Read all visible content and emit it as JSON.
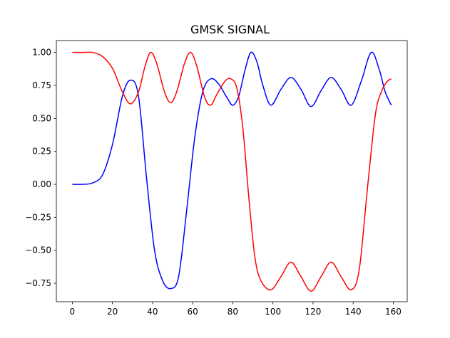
{
  "chart_data": {
    "type": "line",
    "title": "GMSK SIGNAL",
    "xlabel": "",
    "ylabel": "",
    "xlim": [
      -7.95,
      166.95
    ],
    "ylim": [
      -0.89,
      1.09
    ],
    "x_ticks": [
      0,
      20,
      40,
      60,
      80,
      100,
      120,
      140,
      160
    ],
    "y_ticks": [
      -0.75,
      -0.5,
      -0.25,
      0.0,
      0.25,
      0.5,
      0.75,
      1.0
    ],
    "y_tick_labels": [
      "−0.75",
      "−0.50",
      "−0.25",
      "0.00",
      "0.25",
      "0.50",
      "0.75",
      "1.00"
    ],
    "grid": false,
    "legend": "none",
    "series": [
      {
        "color": "#0000ff",
        "points": [
          [
            0,
            0.0
          ],
          [
            5,
            0.0
          ],
          [
            10,
            0.01
          ],
          [
            15,
            0.07
          ],
          [
            20,
            0.3
          ],
          [
            25,
            0.67
          ],
          [
            29,
            0.79
          ],
          [
            33,
            0.67
          ],
          [
            37,
            0.05
          ],
          [
            41,
            -0.5
          ],
          [
            45,
            -0.73
          ],
          [
            49,
            -0.79
          ],
          [
            53,
            -0.7
          ],
          [
            57,
            -0.2
          ],
          [
            61,
            0.35
          ],
          [
            65,
            0.7
          ],
          [
            69,
            0.8
          ],
          [
            73,
            0.76
          ],
          [
            77,
            0.66
          ],
          [
            80,
            0.6
          ],
          [
            83,
            0.67
          ],
          [
            86,
            0.86
          ],
          [
            89,
            1.0
          ],
          [
            92,
            0.93
          ],
          [
            95,
            0.75
          ],
          [
            99,
            0.6
          ],
          [
            104,
            0.72
          ],
          [
            109,
            0.81
          ],
          [
            114,
            0.72
          ],
          [
            119,
            0.59
          ],
          [
            124,
            0.71
          ],
          [
            129,
            0.81
          ],
          [
            134,
            0.72
          ],
          [
            139,
            0.6
          ],
          [
            144,
            0.78
          ],
          [
            149,
            1.0
          ],
          [
            153,
            0.87
          ],
          [
            156,
            0.7
          ],
          [
            159,
            0.6
          ]
        ]
      },
      {
        "color": "#ff0000",
        "points": [
          [
            0,
            1.0
          ],
          [
            5,
            1.0
          ],
          [
            10,
            1.0
          ],
          [
            15,
            0.97
          ],
          [
            20,
            0.88
          ],
          [
            25,
            0.7
          ],
          [
            29,
            0.61
          ],
          [
            33,
            0.7
          ],
          [
            36,
            0.88
          ],
          [
            39,
            1.0
          ],
          [
            42,
            0.92
          ],
          [
            46,
            0.7
          ],
          [
            49,
            0.62
          ],
          [
            52,
            0.7
          ],
          [
            56,
            0.92
          ],
          [
            59,
            1.0
          ],
          [
            62,
            0.9
          ],
          [
            66,
            0.66
          ],
          [
            69,
            0.6
          ],
          [
            72,
            0.68
          ],
          [
            76,
            0.78
          ],
          [
            79,
            0.8
          ],
          [
            82,
            0.73
          ],
          [
            85,
            0.43
          ],
          [
            88,
            -0.1
          ],
          [
            91,
            -0.55
          ],
          [
            94,
            -0.73
          ],
          [
            99,
            -0.8
          ],
          [
            104,
            -0.7
          ],
          [
            109,
            -0.59
          ],
          [
            114,
            -0.7
          ],
          [
            119,
            -0.81
          ],
          [
            124,
            -0.7
          ],
          [
            129,
            -0.59
          ],
          [
            134,
            -0.7
          ],
          [
            139,
            -0.8
          ],
          [
            143,
            -0.65
          ],
          [
            147,
            -0.05
          ],
          [
            151,
            0.52
          ],
          [
            154,
            0.7
          ],
          [
            157,
            0.78
          ],
          [
            159,
            0.8
          ]
        ]
      }
    ]
  }
}
